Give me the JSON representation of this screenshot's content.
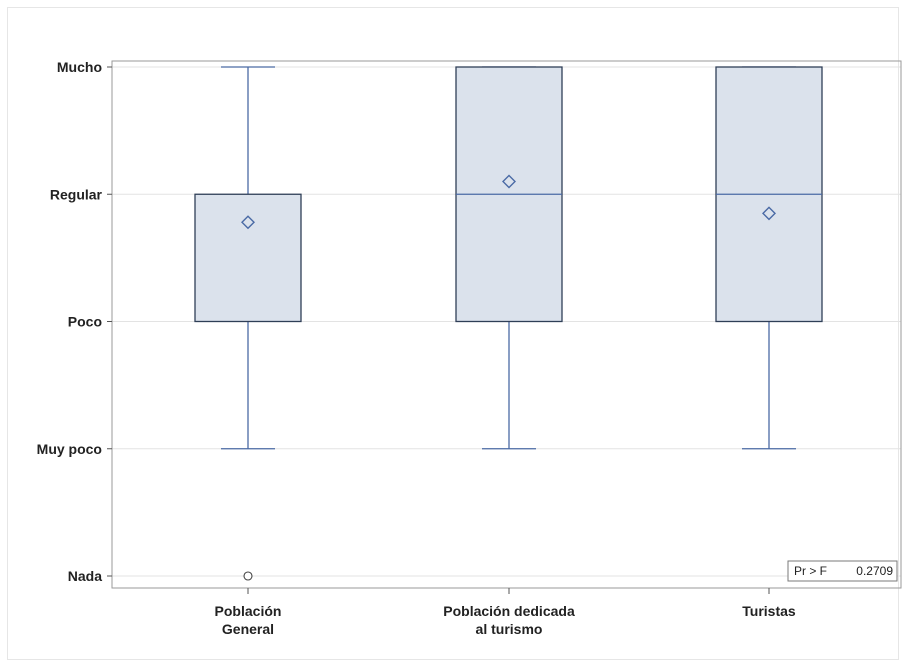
{
  "chart_data": {
    "type": "box",
    "categories": [
      "Población General",
      "Población dedicada al turismo",
      "Turistas"
    ],
    "category_lines": [
      [
        "Población",
        "General"
      ],
      [
        "Población dedicada",
        "al turismo"
      ],
      [
        "Turistas"
      ]
    ],
    "y_levels": [
      "Nada",
      "Muy poco",
      "Poco",
      "Regular",
      "Mucho"
    ],
    "y_values": [
      0,
      1,
      2,
      3,
      4
    ],
    "ylim": [
      0,
      4
    ],
    "boxes": [
      {
        "category": "Población General",
        "min": 1,
        "q1": 2,
        "median": 3,
        "q3": 3,
        "max": 4,
        "mean": 2.78,
        "outliers": [
          0
        ]
      },
      {
        "category": "Población dedicada al turismo",
        "min": 1,
        "q1": 2,
        "median": 3,
        "q3": 4,
        "max": 4,
        "mean": 3.1,
        "outliers": []
      },
      {
        "category": "Turistas",
        "min": 1,
        "q1": 2,
        "median": 3,
        "q3": 4,
        "max": 4,
        "mean": 2.85,
        "outliers": []
      }
    ],
    "inset": {
      "label": "Pr > F",
      "value": "0.2709",
      "position": "bottom-right"
    },
    "grid": true,
    "colors": {
      "box_fill": "#dbe2ec",
      "box_stroke": "#2f3f57",
      "whisker": "#4a6aa5",
      "mean_marker": "#4a6aa5",
      "grid": "#e3e3e3"
    }
  }
}
